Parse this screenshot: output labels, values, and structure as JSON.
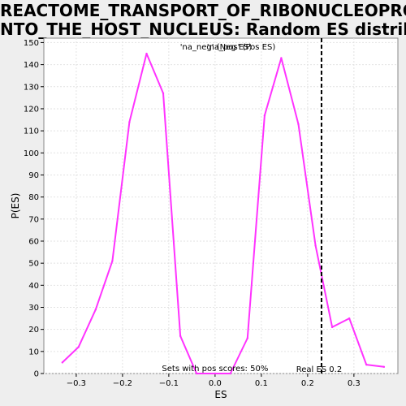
{
  "chart_data": {
    "type": "line",
    "title": [
      "REACTOME_TRANSPORT_OF_RIBONUCLEOPROTEINS_I",
      "NTO_THE_HOST_NUCLEUS: Random ES distribution"
    ],
    "xlabel": "ES",
    "ylabel": "P(ES)",
    "xlim": [
      -0.37,
      0.395
    ],
    "ylim": [
      0,
      152
    ],
    "x_ticks": [
      -0.3,
      -0.2,
      -0.1,
      0,
      0.1,
      0.2,
      0.3
    ],
    "x_tick_labels": [
      "−0.3",
      "−0.2",
      "−0.1",
      "0.0",
      "0.1",
      "0.2",
      "0.3"
    ],
    "y_ticks": [
      0,
      10,
      20,
      30,
      40,
      50,
      60,
      70,
      80,
      90,
      100,
      110,
      120,
      130,
      140,
      150
    ],
    "grid": true,
    "legend": {
      "neg_label": "'na_neg' (Neg ES)",
      "pos_label": "'na_pos' (Pos ES)",
      "neg_color": "#3333cc",
      "pos_color": "#cc3333",
      "placement": "top-center"
    },
    "series": [
      {
        "color": "#ff33ff",
        "x": [
          -0.33,
          -0.295,
          -0.258,
          -0.222,
          -0.185,
          -0.148,
          -0.112,
          -0.075,
          -0.04,
          0.0,
          0.033,
          0.07,
          0.107,
          0.143,
          0.18,
          0.217,
          0.253,
          0.29,
          0.327,
          0.365
        ],
        "y": [
          5,
          12,
          29,
          51,
          114,
          145,
          127,
          17,
          0,
          0,
          0,
          16,
          117,
          143,
          113,
          58,
          21,
          25,
          4,
          3
        ]
      }
    ],
    "real_es": {
      "value": 0.23,
      "label": "Real ES 0.2",
      "line_color": "#000000"
    },
    "annotation": "Sets with pos scores: 50%"
  }
}
